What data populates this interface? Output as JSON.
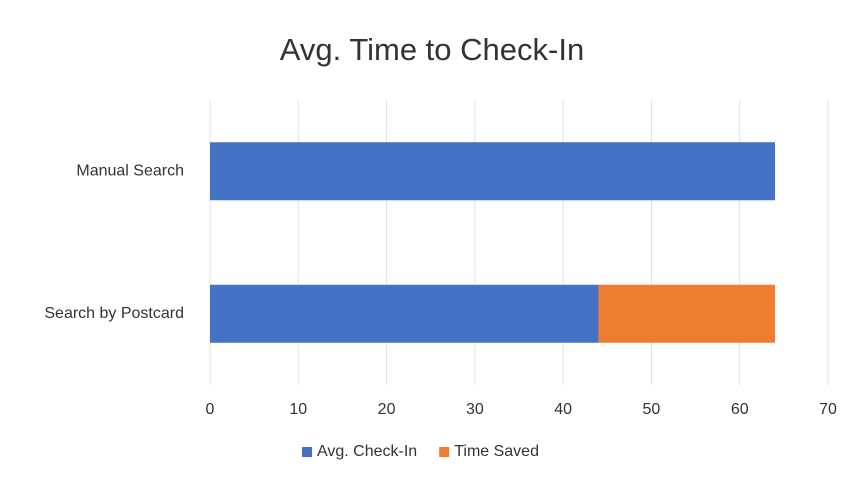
{
  "chart_data": {
    "type": "bar",
    "orientation": "horizontal",
    "stacked": true,
    "title": "Avg. Time to Check-In",
    "categories": [
      "Manual Search",
      "Search by Postcard"
    ],
    "series": [
      {
        "name": "Avg. Check-In",
        "color": "#4472c4",
        "values": [
          64,
          44
        ]
      },
      {
        "name": "Time Saved",
        "color": "#ed7d31",
        "values": [
          null,
          20
        ]
      }
    ],
    "xlim": [
      0,
      70
    ],
    "xticks": [
      0,
      10,
      20,
      30,
      40,
      50,
      60,
      70
    ],
    "grid": true,
    "legend": "bottom"
  }
}
